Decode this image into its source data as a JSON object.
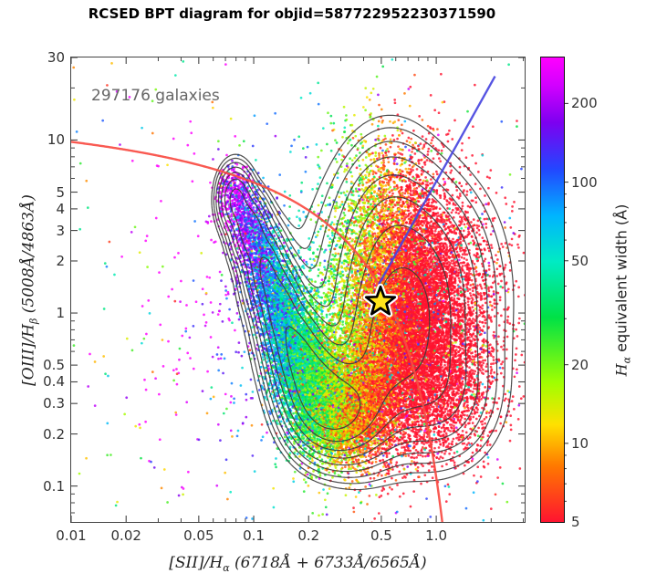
{
  "chart_data": {
    "type": "scatter",
    "title": "RCSED BPT diagram for objid=587722952230371590",
    "objid": "587722952230371590",
    "annotation": "297176 galaxies",
    "n_galaxies": 297176,
    "xscale": "log",
    "yscale": "log",
    "xlim": [
      0.01,
      3.05
    ],
    "ylim": [
      0.062,
      30
    ],
    "labels": {
      "xlabel_full": "[SII]/Hα (6718Å + 6733Å/6565Å)",
      "xlabel_pre": "[SII]/H",
      "xlabel_sub": "α",
      "xlabel_post": " (6718Å + 6733Å/6565Å)",
      "ylabel_full": "[OIII]/Hβ (5008Å/4863Å)",
      "ylabel_pre": "[OIII]/H",
      "ylabel_sub": "β",
      "ylabel_post": " (5008Å/4863Å)"
    },
    "xticks": {
      "values": [
        0.01,
        0.02,
        0.05,
        0.1,
        0.2,
        0.5,
        1.0
      ],
      "labels": [
        "0.01",
        "0.02",
        "0.05",
        "0.1",
        "0.2",
        "0.5",
        "1.0"
      ],
      "minor": [
        0.03,
        0.04,
        0.06,
        0.07,
        0.08,
        0.09,
        0.3,
        0.4,
        0.6,
        0.7,
        0.8,
        0.9,
        2,
        3
      ]
    },
    "yticks": {
      "values": [
        30,
        10,
        5,
        4,
        3,
        2,
        1,
        0.5,
        0.4,
        0.3,
        0.2,
        0.1
      ],
      "labels": [
        "30",
        "10",
        "5",
        "4",
        "3",
        "2",
        "1",
        "0.5",
        "0.4",
        "0.3",
        "0.2",
        "0.1"
      ],
      "minor": [
        20,
        9,
        8,
        7,
        6,
        0.9,
        0.8,
        0.7,
        0.6,
        0.09,
        0.08,
        0.07
      ]
    },
    "colorbar": {
      "label_full": "Hα equivalent width (Å)",
      "label_pre": "H",
      "label_sub": "α",
      "label_post": " equivalent width (Å)",
      "range": [
        5,
        300
      ],
      "scale": "log",
      "ticks": {
        "values": [
          200,
          100,
          50,
          20,
          10,
          5
        ],
        "labels": [
          "200",
          "100",
          "50",
          "20",
          "10",
          "5"
        ],
        "minor": [
          6,
          7,
          8,
          9,
          30,
          40,
          60,
          70,
          80,
          90
        ]
      },
      "css_stops": [
        "#ff1430 0%",
        "#ff7800 12%",
        "#ffe100 21%",
        "#a0ff00 30%",
        "#00e146 44%",
        "#00ebc3 56%",
        "#00b4ff 66%",
        "#2346ff 76%",
        "#7d00f0 86%",
        "#d200ff 94%",
        "#ff00ff 100%"
      ]
    },
    "colormap": {
      "name": "gist-rainbow-like",
      "stops": [
        [
          0.0,
          255,
          20,
          48
        ],
        [
          0.12,
          255,
          120,
          0
        ],
        [
          0.21,
          255,
          225,
          0
        ],
        [
          0.3,
          160,
          255,
          0
        ],
        [
          0.44,
          0,
          225,
          70
        ],
        [
          0.56,
          0,
          235,
          195
        ],
        [
          0.66,
          0,
          180,
          255
        ],
        [
          0.76,
          35,
          70,
          255
        ],
        [
          0.86,
          125,
          0,
          240
        ],
        [
          0.94,
          210,
          0,
          255
        ],
        [
          1.0,
          255,
          0,
          255
        ]
      ]
    },
    "star_marker": {
      "x": 0.495,
      "y": 1.16,
      "fill": "#ffe41a",
      "edge": "#000000",
      "halo": "#ffffff",
      "outer_r": 16.5,
      "inner_r": 6.8
    },
    "curves": [
      {
        "name": "kewley2001-sii-classification",
        "color": "#f94b42",
        "width": 2.4,
        "equation": "log10(y) = 0.72/(log10(x)-0.32) + 1.30",
        "logx_domain": [
          -2.0,
          0.045
        ]
      },
      {
        "name": "seyfert-liner-division",
        "color": "#4845e0",
        "width": 2.4,
        "equation": "log10(y) = 1.89*log10(x) + 0.76",
        "logx_domain": [
          -0.315,
          0.322
        ]
      }
    ],
    "contours": {
      "count": 9,
      "color": "#3a3a3a",
      "level_ratio": 0.6,
      "alpha": 0.9
    },
    "point_model": {
      "note": "procedural approximation of the 297176-galaxy density field",
      "point_alpha": 0.82,
      "point_radius": 1.35,
      "ew_model": {
        "a": 0.3,
        "bx": -1.75,
        "by": 0.15,
        "scatter": 0.22,
        "random_fraction": 0.07
      },
      "clusters_format": [
        "log10_x_center",
        "log10_y_center",
        "sigma_x",
        "sigma_y",
        "count"
      ],
      "clusters": [
        [
          -1.1,
          0.66,
          0.05,
          0.1,
          450
        ],
        [
          -1.02,
          0.48,
          0.055,
          0.11,
          650
        ],
        [
          -0.94,
          0.26,
          0.06,
          0.13,
          950
        ],
        [
          -0.86,
          0.04,
          0.065,
          0.14,
          1350
        ],
        [
          -0.78,
          -0.18,
          0.075,
          0.15,
          1900
        ],
        [
          -0.7,
          -0.36,
          0.085,
          0.16,
          2500
        ],
        [
          -0.62,
          -0.5,
          0.095,
          0.15,
          2600
        ],
        [
          -0.52,
          -0.58,
          0.11,
          0.14,
          2100
        ],
        [
          -0.42,
          -0.52,
          0.12,
          0.18,
          1650
        ],
        [
          -0.32,
          -0.3,
          0.14,
          0.24,
          1650
        ],
        [
          -0.22,
          0.0,
          0.18,
          0.3,
          3400
        ],
        [
          -0.12,
          -0.18,
          0.19,
          0.28,
          2900
        ],
        [
          -0.15,
          0.1,
          0.25,
          0.35,
          2400
        ],
        [
          -0.26,
          0.48,
          0.16,
          0.3,
          1700
        ],
        [
          -0.05,
          0.25,
          0.18,
          0.28,
          1600
        ],
        [
          0.02,
          -0.48,
          0.16,
          0.2,
          1300
        ],
        [
          -0.62,
          -0.05,
          0.45,
          0.55,
          800
        ]
      ],
      "uniform_outliers": 230
    }
  }
}
